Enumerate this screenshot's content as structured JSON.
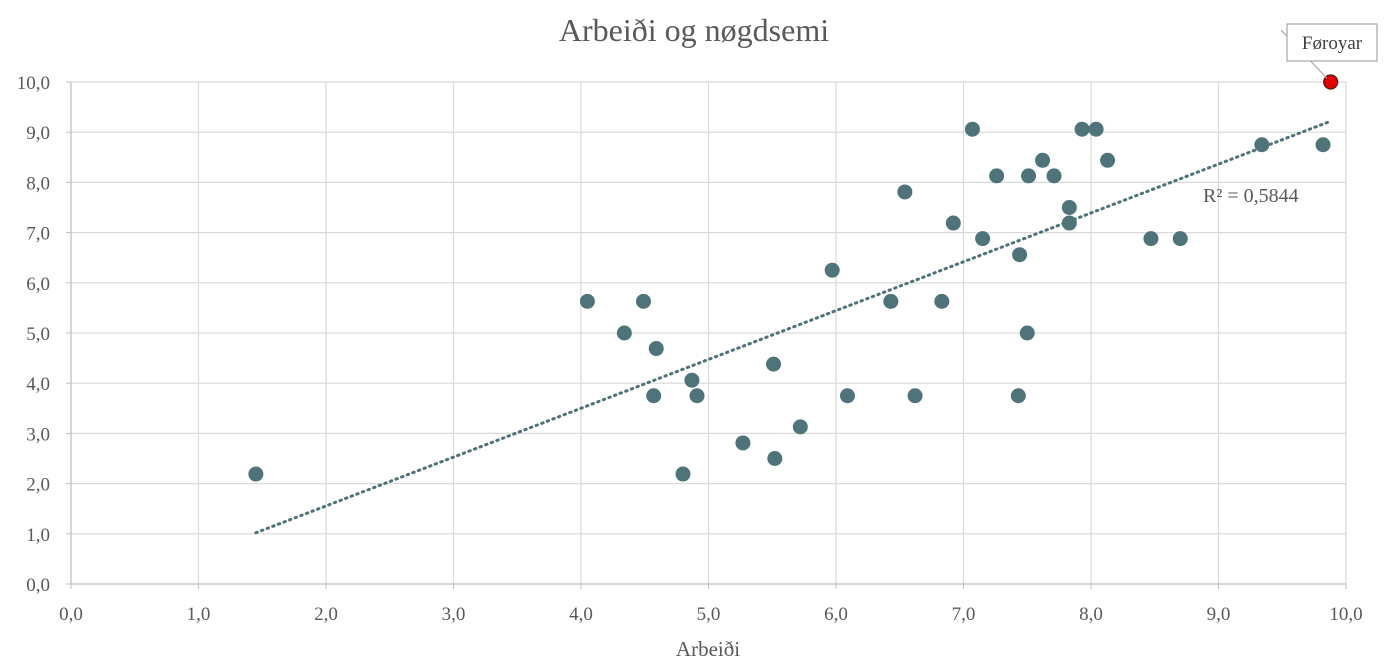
{
  "chart_data": {
    "type": "scatter",
    "title": "Arbeiði og nøgdsemi",
    "xlabel": "Arbeiði",
    "ylabel": "",
    "xlim": [
      0,
      10
    ],
    "ylim": [
      0,
      10
    ],
    "x_ticks": [
      "0,0",
      "1,0",
      "2,0",
      "3,0",
      "4,0",
      "5,0",
      "6,0",
      "7,0",
      "8,0",
      "9,0",
      "10,0"
    ],
    "y_ticks": [
      "0,0",
      "1,0",
      "2,0",
      "3,0",
      "4,0",
      "5,0",
      "6,0",
      "7,0",
      "8,0",
      "9,0",
      "10,0"
    ],
    "grid": true,
    "marker_color": "#4e7378",
    "highlight_color": "#e00000",
    "trendline_color": "#4e7378",
    "r_squared_label": "R² = 0,5844",
    "trendline": {
      "x": [
        1.45,
        9.88
      ],
      "y": [
        1.02,
        9.22
      ]
    },
    "points": [
      {
        "x": 1.45,
        "y": 2.19
      },
      {
        "x": 4.05,
        "y": 5.63
      },
      {
        "x": 4.34,
        "y": 5.0
      },
      {
        "x": 4.49,
        "y": 5.63
      },
      {
        "x": 4.57,
        "y": 3.75
      },
      {
        "x": 4.59,
        "y": 4.69
      },
      {
        "x": 4.8,
        "y": 2.19
      },
      {
        "x": 4.87,
        "y": 4.06
      },
      {
        "x": 4.91,
        "y": 3.75
      },
      {
        "x": 5.27,
        "y": 2.81
      },
      {
        "x": 5.51,
        "y": 4.38
      },
      {
        "x": 5.52,
        "y": 2.5
      },
      {
        "x": 5.72,
        "y": 3.13
      },
      {
        "x": 5.97,
        "y": 6.25
      },
      {
        "x": 6.09,
        "y": 3.75
      },
      {
        "x": 6.43,
        "y": 5.63
      },
      {
        "x": 6.54,
        "y": 7.81
      },
      {
        "x": 6.62,
        "y": 3.75
      },
      {
        "x": 6.83,
        "y": 5.63
      },
      {
        "x": 6.92,
        "y": 7.19
      },
      {
        "x": 7.07,
        "y": 9.06
      },
      {
        "x": 7.15,
        "y": 6.88
      },
      {
        "x": 7.26,
        "y": 8.13
      },
      {
        "x": 7.43,
        "y": 3.75
      },
      {
        "x": 7.44,
        "y": 6.56
      },
      {
        "x": 7.5,
        "y": 5.0
      },
      {
        "x": 7.51,
        "y": 8.13
      },
      {
        "x": 7.62,
        "y": 8.44
      },
      {
        "x": 7.71,
        "y": 8.13
      },
      {
        "x": 7.83,
        "y": 7.5
      },
      {
        "x": 7.83,
        "y": 7.19
      },
      {
        "x": 7.93,
        "y": 9.06
      },
      {
        "x": 8.04,
        "y": 9.06
      },
      {
        "x": 8.13,
        "y": 8.44
      },
      {
        "x": 8.47,
        "y": 6.88
      },
      {
        "x": 8.7,
        "y": 6.88
      },
      {
        "x": 9.34,
        "y": 8.75
      },
      {
        "x": 9.82,
        "y": 8.75
      },
      {
        "x": 9.88,
        "y": 10.0,
        "highlight": true,
        "label": "Føroyar"
      }
    ]
  }
}
